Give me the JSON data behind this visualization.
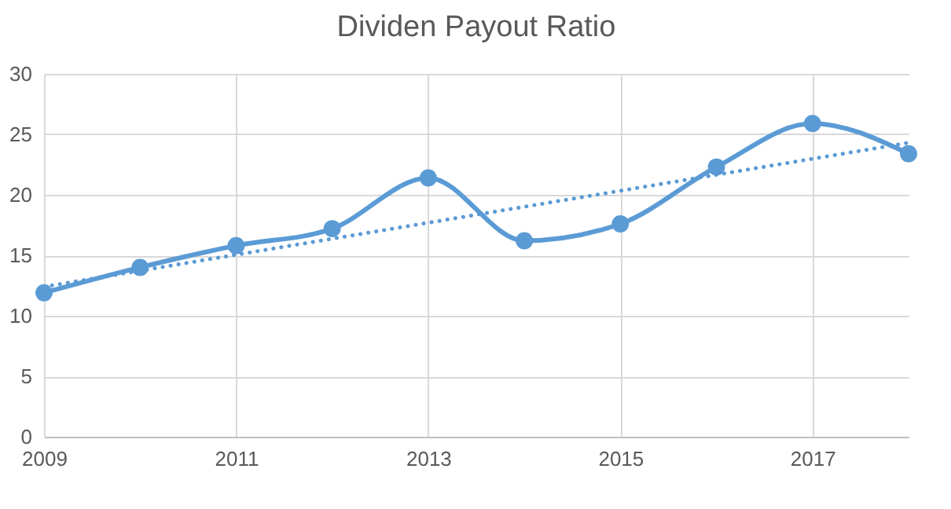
{
  "chart_data": {
    "type": "line",
    "title": "Dividen Payout Ratio",
    "x": [
      2009,
      2010,
      2011,
      2012,
      2013,
      2014,
      2015,
      2016,
      2017,
      2018
    ],
    "series": [
      {
        "color": "#5b9bd5",
        "values": [
          11.9,
          14.0,
          15.8,
          17.2,
          21.4,
          16.2,
          17.6,
          22.3,
          25.9,
          23.4
        ],
        "marker": "circle",
        "line_style": "solid"
      },
      {
        "type": "line",
        "color": "#5b9bd5",
        "x": [
          2009,
          2018
        ],
        "values": [
          12.4,
          24.3
        ],
        "marker": "none",
        "line_style": "dotted"
      }
    ],
    "xlim": [
      2009,
      2018
    ],
    "xticks": [
      2009,
      2011,
      2013,
      2015,
      2017
    ],
    "ylim": [
      0,
      30
    ],
    "yticks": [
      0,
      5,
      10,
      15,
      20,
      25,
      30
    ],
    "grid": true
  }
}
